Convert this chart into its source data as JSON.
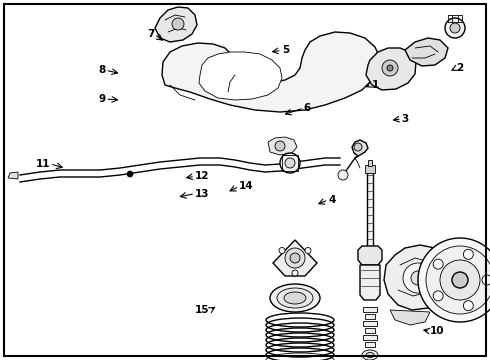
{
  "background_color": "#ffffff",
  "line_color": "#000000",
  "fig_width": 4.9,
  "fig_height": 3.6,
  "dpi": 100,
  "label_fontsize": 7.5,
  "lw_main": 1.0,
  "lw_thin": 0.6,
  "lw_thick": 1.5,
  "border_color": "#000000",
  "labels": [
    {
      "num": "1",
      "xt": 0.758,
      "yt": 0.235,
      "xtip": 0.74,
      "ytip": 0.245,
      "dir": "left"
    },
    {
      "num": "2",
      "xt": 0.93,
      "yt": 0.19,
      "xtip": 0.915,
      "ytip": 0.2,
      "dir": "left"
    },
    {
      "num": "3",
      "xt": 0.82,
      "yt": 0.33,
      "xtip": 0.795,
      "ytip": 0.335,
      "dir": "left"
    },
    {
      "num": "4",
      "xt": 0.67,
      "yt": 0.555,
      "xtip": 0.643,
      "ytip": 0.57,
      "dir": "left"
    },
    {
      "num": "5",
      "xt": 0.575,
      "yt": 0.14,
      "xtip": 0.548,
      "ytip": 0.145,
      "dir": "left"
    },
    {
      "num": "6",
      "xt": 0.62,
      "yt": 0.3,
      "xtip": 0.575,
      "ytip": 0.32,
      "dir": "left"
    },
    {
      "num": "7",
      "xt": 0.315,
      "yt": 0.095,
      "xtip": 0.338,
      "ytip": 0.118,
      "dir": "right"
    },
    {
      "num": "8",
      "xt": 0.215,
      "yt": 0.195,
      "xtip": 0.248,
      "ytip": 0.205,
      "dir": "right"
    },
    {
      "num": "9",
      "xt": 0.215,
      "yt": 0.275,
      "xtip": 0.248,
      "ytip": 0.278,
      "dir": "right"
    },
    {
      "num": "10",
      "xt": 0.878,
      "yt": 0.92,
      "xtip": 0.857,
      "ytip": 0.915,
      "dir": "left"
    },
    {
      "num": "11",
      "xt": 0.102,
      "yt": 0.455,
      "xtip": 0.135,
      "ytip": 0.468,
      "dir": "right"
    },
    {
      "num": "12",
      "xt": 0.398,
      "yt": 0.49,
      "xtip": 0.373,
      "ytip": 0.495,
      "dir": "left"
    },
    {
      "num": "13",
      "xt": 0.398,
      "yt": 0.538,
      "xtip": 0.36,
      "ytip": 0.548,
      "dir": "left"
    },
    {
      "num": "14",
      "xt": 0.488,
      "yt": 0.518,
      "xtip": 0.462,
      "ytip": 0.535,
      "dir": "left"
    },
    {
      "num": "15",
      "xt": 0.428,
      "yt": 0.862,
      "xtip": 0.445,
      "ytip": 0.848,
      "dir": "right"
    }
  ]
}
